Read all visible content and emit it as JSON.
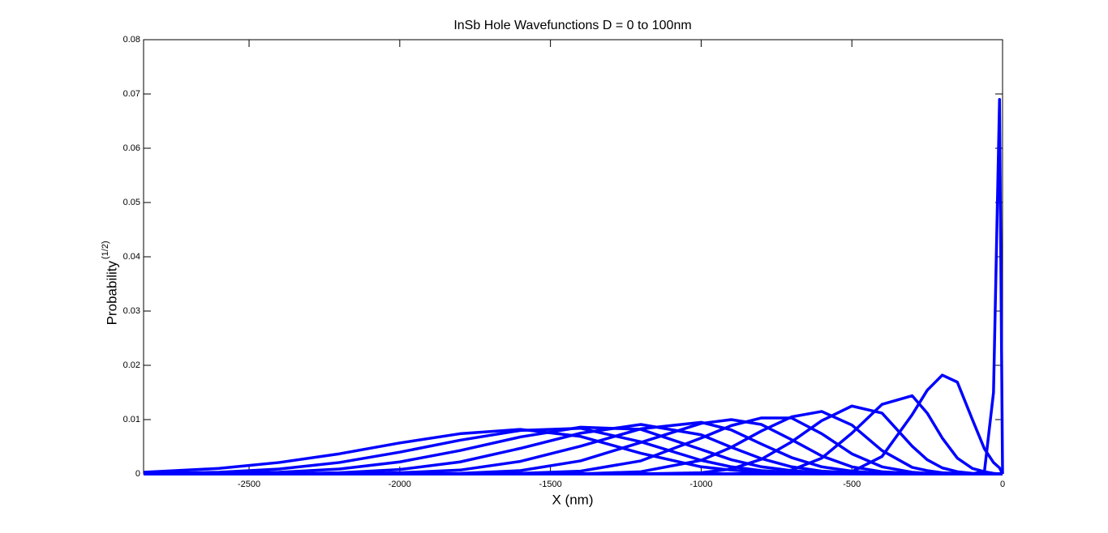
{
  "chart_data": {
    "type": "line",
    "title": "InSb Hole Wavefunctions D = 0 to 100nm",
    "xlabel": "X (nm)",
    "ylabel": "Probability",
    "ylabel_superscript": "(1/2)",
    "xlim": [
      -2850,
      0
    ],
    "xticks": [
      -2500,
      -2000,
      -1500,
      -1000,
      -500,
      0
    ],
    "ylim": [
      0,
      0.08
    ],
    "yticks": [
      0,
      0.01,
      0.02,
      0.03,
      0.04,
      0.05,
      0.06,
      0.07,
      0.08
    ],
    "grid": false,
    "x": [
      -2850,
      -2600,
      -2400,
      -2200,
      -2000,
      -1800,
      -1600,
      -1400,
      -1200,
      -1000,
      -900,
      -800,
      -700,
      -600,
      -500,
      -400,
      -300,
      -250,
      -200,
      -150,
      -100,
      -60,
      -30,
      -10,
      0
    ],
    "series": [
      {
        "color": "#0000ff",
        "values": [
          0,
          0,
          0,
          0,
          0,
          0,
          0,
          0,
          0,
          0,
          0,
          0,
          0,
          0,
          0,
          0,
          0,
          0,
          0,
          0,
          0,
          0.0005,
          0.015,
          0.069,
          0
        ]
      },
      {
        "color": "#0000ff",
        "values": [
          0,
          0,
          0,
          0,
          0,
          0,
          0,
          0,
          0,
          0,
          0,
          0,
          0,
          0,
          0.0004,
          0.0032,
          0.0109,
          0.0154,
          0.0182,
          0.0169,
          0.01,
          0.0046,
          0.0021,
          0.0011,
          0
        ]
      },
      {
        "color": "#0000ff",
        "values": [
          0,
          0,
          0,
          0,
          0,
          0,
          0,
          0,
          0,
          0,
          0,
          0.0001,
          0.0007,
          0.0029,
          0.0075,
          0.0128,
          0.0144,
          0.0112,
          0.0066,
          0.0029,
          0.001,
          0.0004,
          0.0001,
          0,
          0
        ]
      },
      {
        "color": "#0000ff",
        "values": [
          0,
          0,
          0,
          0,
          0,
          0,
          0,
          0,
          0,
          0.0002,
          0.0009,
          0.0027,
          0.0059,
          0.0098,
          0.0125,
          0.0112,
          0.0051,
          0.0026,
          0.0011,
          0.0004,
          0.0001,
          0,
          0,
          0,
          0
        ]
      },
      {
        "color": "#0000ff",
        "values": [
          0,
          0,
          0,
          0,
          0,
          0,
          0,
          0,
          0.0004,
          0.0025,
          0.0049,
          0.0079,
          0.0105,
          0.0115,
          0.009,
          0.0043,
          0.0012,
          0.0006,
          0.0002,
          0.0001,
          0,
          0,
          0,
          0,
          0
        ]
      },
      {
        "color": "#0000ff",
        "values": [
          0,
          0,
          0,
          0,
          0,
          0,
          0.0001,
          0.0005,
          0.0024,
          0.0066,
          0.0089,
          0.0103,
          0.0103,
          0.0074,
          0.0037,
          0.0013,
          0.0003,
          0.0001,
          0,
          0,
          0,
          0,
          0,
          0,
          0
        ]
      },
      {
        "color": "#0000ff",
        "values": [
          0,
          0,
          0,
          0,
          0,
          0.0001,
          0.0006,
          0.0024,
          0.0058,
          0.0093,
          0.01,
          0.0091,
          0.0063,
          0.0033,
          0.0013,
          0.0004,
          0.0001,
          0,
          0,
          0,
          0,
          0,
          0,
          0,
          0
        ]
      },
      {
        "color": "#0000ff",
        "values": [
          0,
          0,
          0,
          0,
          0.0002,
          0.0007,
          0.0023,
          0.0051,
          0.0083,
          0.0095,
          0.0081,
          0.0055,
          0.003,
          0.0013,
          0.0005,
          0.0001,
          0,
          0,
          0,
          0,
          0,
          0,
          0,
          0,
          0
        ]
      },
      {
        "color": "#0000ff",
        "values": [
          0,
          0,
          0,
          0.0002,
          0.0008,
          0.0022,
          0.0047,
          0.0075,
          0.0091,
          0.0072,
          0.0049,
          0.0028,
          0.0013,
          0.0005,
          0.0002,
          0,
          0,
          0,
          0,
          0,
          0,
          0,
          0,
          0,
          0
        ]
      },
      {
        "color": "#0000ff",
        "values": [
          0,
          0.0001,
          0.0003,
          0.0009,
          0.0022,
          0.0043,
          0.0068,
          0.0086,
          0.0082,
          0.0045,
          0.0026,
          0.0013,
          0.0006,
          0.0002,
          0.0001,
          0,
          0,
          0,
          0,
          0,
          0,
          0,
          0,
          0,
          0
        ]
      },
      {
        "color": "#0000ff",
        "values": [
          0.0001,
          0.0003,
          0.0009,
          0.0021,
          0.004,
          0.0062,
          0.008,
          0.0084,
          0.0059,
          0.0025,
          0.0013,
          0.0006,
          0.0003,
          0.0001,
          0,
          0,
          0,
          0,
          0,
          0,
          0,
          0,
          0,
          0,
          0
        ]
      },
      {
        "color": "#0000ff",
        "values": [
          0.0003,
          0.001,
          0.0021,
          0.0037,
          0.0057,
          0.0074,
          0.0082,
          0.0069,
          0.0038,
          0.0013,
          0.0007,
          0.0003,
          0.0001,
          0,
          0,
          0,
          0,
          0,
          0,
          0,
          0,
          0,
          0,
          0,
          0
        ]
      }
    ]
  }
}
